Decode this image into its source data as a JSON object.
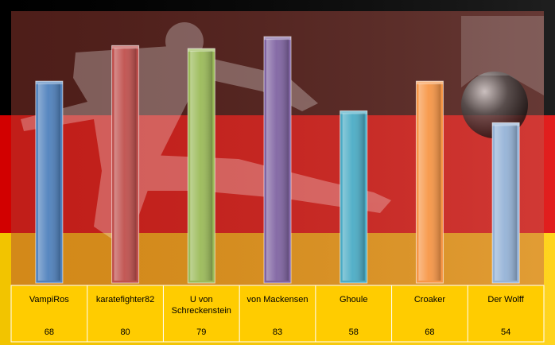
{
  "chart_data": {
    "type": "bar",
    "categories": [
      "VampiRos",
      "karatefighter82",
      "U von Schreckenstein",
      "von Mackensen",
      "Ghoule",
      "Croaker",
      "Der Wolff"
    ],
    "category_lines": [
      [
        "VampiRos"
      ],
      [
        "karatefighter82"
      ],
      [
        "U von",
        "Schreckenstein"
      ],
      [
        "von Mackensen"
      ],
      [
        "Ghoule"
      ],
      [
        "Croaker"
      ],
      [
        "Der Wolff"
      ]
    ],
    "values": [
      68,
      80,
      79,
      83,
      58,
      68,
      54
    ],
    "value_labels": [
      "68",
      "80",
      "79",
      "83",
      "58",
      "68",
      "54"
    ],
    "ylim": [
      0,
      90
    ],
    "grid": false,
    "legend": "none",
    "data_table": true,
    "background": "German flag bands (black, red, gold) with a faded soccer player silhouette",
    "colors": {
      "bars": [
        "#4f81bd",
        "#c0504d",
        "#9bbb59",
        "#8064a2",
        "#4bacc6",
        "#f79646",
        "#95b3d7"
      ],
      "flag_black": "#000000",
      "flag_red": "#dd0000",
      "flag_gold": "#ffce00",
      "table_fill": "#ffcc00"
    }
  }
}
